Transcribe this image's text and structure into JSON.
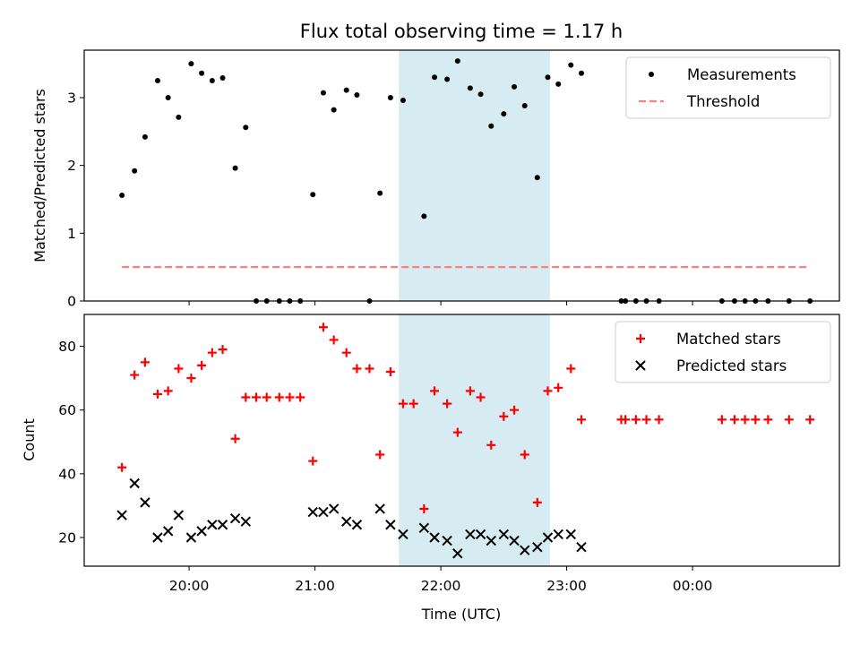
{
  "chart_data": {
    "title": "Flux total observing time = 1.17 h",
    "xlabel": "Time (UTC)",
    "x_ticks": [
      "20:00",
      "21:00",
      "22:00",
      "23:00",
      "00:00"
    ],
    "x_range": [
      "19:10",
      "01:10"
    ],
    "highlight_span": {
      "start": "21:40",
      "end": "22:52",
      "color": "#add8e6"
    },
    "panels": [
      {
        "type": "scatter",
        "ylabel": "Matched/Predicted stars",
        "ylim": [
          0,
          3.7
        ],
        "y_ticks": [
          0,
          1,
          2,
          3
        ],
        "legend_position": "upper right",
        "series": [
          {
            "name": "Measurements",
            "color": "#000000",
            "marker": "dot",
            "points": [
              {
                "x": "19:28",
                "y": 1.56
              },
              {
                "x": "19:34",
                "y": 1.92
              },
              {
                "x": "19:39",
                "y": 2.42
              },
              {
                "x": "19:45",
                "y": 3.25
              },
              {
                "x": "19:50",
                "y": 3.0
              },
              {
                "x": "19:55",
                "y": 2.71
              },
              {
                "x": "20:01",
                "y": 3.5
              },
              {
                "x": "20:06",
                "y": 3.36
              },
              {
                "x": "20:11",
                "y": 3.25
              },
              {
                "x": "20:16",
                "y": 3.29
              },
              {
                "x": "20:22",
                "y": 1.96
              },
              {
                "x": "20:27",
                "y": 2.56
              },
              {
                "x": "20:32",
                "y": 0.0
              },
              {
                "x": "20:37",
                "y": 0.0
              },
              {
                "x": "20:43",
                "y": 0.0
              },
              {
                "x": "20:48",
                "y": 0.0
              },
              {
                "x": "20:53",
                "y": 0.0
              },
              {
                "x": "20:59",
                "y": 1.57
              },
              {
                "x": "21:04",
                "y": 3.07
              },
              {
                "x": "21:09",
                "y": 2.82
              },
              {
                "x": "21:15",
                "y": 3.11
              },
              {
                "x": "21:20",
                "y": 3.04
              },
              {
                "x": "21:26",
                "y": 0.0
              },
              {
                "x": "21:31",
                "y": 1.59
              },
              {
                "x": "21:36",
                "y": 3.0
              },
              {
                "x": "21:42",
                "y": 2.96
              },
              {
                "x": "21:52",
                "y": 1.25
              },
              {
                "x": "21:57",
                "y": 3.3
              },
              {
                "x": "22:03",
                "y": 3.27
              },
              {
                "x": "22:08",
                "y": 3.54
              },
              {
                "x": "22:14",
                "y": 3.14
              },
              {
                "x": "22:19",
                "y": 3.05
              },
              {
                "x": "22:24",
                "y": 2.58
              },
              {
                "x": "22:30",
                "y": 2.76
              },
              {
                "x": "22:35",
                "y": 3.16
              },
              {
                "x": "22:40",
                "y": 2.88
              },
              {
                "x": "22:46",
                "y": 1.82
              },
              {
                "x": "22:51",
                "y": 3.3
              },
              {
                "x": "22:56",
                "y": 3.2
              },
              {
                "x": "23:02",
                "y": 3.48
              },
              {
                "x": "23:07",
                "y": 3.36
              },
              {
                "x": "23:26",
                "y": 0.0
              },
              {
                "x": "23:28",
                "y": 0.0
              },
              {
                "x": "23:33",
                "y": 0.0
              },
              {
                "x": "23:38",
                "y": 0.0
              },
              {
                "x": "23:44",
                "y": 0.0
              },
              {
                "x": "00:14",
                "y": 0.0
              },
              {
                "x": "00:20",
                "y": 0.0
              },
              {
                "x": "00:25",
                "y": 0.0
              },
              {
                "x": "00:30",
                "y": 0.0
              },
              {
                "x": "00:36",
                "y": 0.0
              },
              {
                "x": "00:46",
                "y": 0.0
              },
              {
                "x": "00:56",
                "y": 0.0
              }
            ]
          },
          {
            "name": "Threshold",
            "type": "line",
            "color": "#ff7f7f",
            "dashed": true,
            "x": [
              "19:28",
              "00:56"
            ],
            "y": [
              0.5,
              0.5
            ]
          }
        ]
      },
      {
        "type": "scatter",
        "ylabel": "Count",
        "ylim": [
          11,
          90
        ],
        "y_ticks": [
          20,
          40,
          60,
          80
        ],
        "legend_position": "upper right",
        "series": [
          {
            "name": "Matched stars",
            "color": "#ff0000",
            "marker": "plus",
            "points": [
              {
                "x": "19:28",
                "y": 42
              },
              {
                "x": "19:34",
                "y": 71
              },
              {
                "x": "19:39",
                "y": 75
              },
              {
                "x": "19:45",
                "y": 65
              },
              {
                "x": "19:50",
                "y": 66
              },
              {
                "x": "19:55",
                "y": 73
              },
              {
                "x": "20:01",
                "y": 70
              },
              {
                "x": "20:06",
                "y": 74
              },
              {
                "x": "20:11",
                "y": 78
              },
              {
                "x": "20:16",
                "y": 79
              },
              {
                "x": "20:22",
                "y": 51
              },
              {
                "x": "20:27",
                "y": 64
              },
              {
                "x": "20:32",
                "y": 64
              },
              {
                "x": "20:37",
                "y": 64
              },
              {
                "x": "20:43",
                "y": 64
              },
              {
                "x": "20:48",
                "y": 64
              },
              {
                "x": "20:53",
                "y": 64
              },
              {
                "x": "20:59",
                "y": 44
              },
              {
                "x": "21:04",
                "y": 86
              },
              {
                "x": "21:09",
                "y": 82
              },
              {
                "x": "21:15",
                "y": 78
              },
              {
                "x": "21:20",
                "y": 73
              },
              {
                "x": "21:26",
                "y": 73
              },
              {
                "x": "21:31",
                "y": 46
              },
              {
                "x": "21:36",
                "y": 72
              },
              {
                "x": "21:42",
                "y": 62
              },
              {
                "x": "21:47",
                "y": 62
              },
              {
                "x": "21:52",
                "y": 29
              },
              {
                "x": "21:57",
                "y": 66
              },
              {
                "x": "22:03",
                "y": 62
              },
              {
                "x": "22:08",
                "y": 53
              },
              {
                "x": "22:14",
                "y": 66
              },
              {
                "x": "22:19",
                "y": 64
              },
              {
                "x": "22:24",
                "y": 49
              },
              {
                "x": "22:30",
                "y": 58
              },
              {
                "x": "22:35",
                "y": 60
              },
              {
                "x": "22:40",
                "y": 46
              },
              {
                "x": "22:46",
                "y": 31
              },
              {
                "x": "22:51",
                "y": 66
              },
              {
                "x": "22:56",
                "y": 67
              },
              {
                "x": "23:02",
                "y": 73
              },
              {
                "x": "23:07",
                "y": 57
              },
              {
                "x": "23:26",
                "y": 57
              },
              {
                "x": "23:28",
                "y": 57
              },
              {
                "x": "23:33",
                "y": 57
              },
              {
                "x": "23:38",
                "y": 57
              },
              {
                "x": "23:44",
                "y": 57
              },
              {
                "x": "00:14",
                "y": 57
              },
              {
                "x": "00:20",
                "y": 57
              },
              {
                "x": "00:25",
                "y": 57
              },
              {
                "x": "00:30",
                "y": 57
              },
              {
                "x": "00:36",
                "y": 57
              },
              {
                "x": "00:46",
                "y": 57
              },
              {
                "x": "00:56",
                "y": 57
              }
            ]
          },
          {
            "name": "Predicted stars",
            "color": "#000000",
            "marker": "x",
            "points": [
              {
                "x": "19:28",
                "y": 27
              },
              {
                "x": "19:34",
                "y": 37
              },
              {
                "x": "19:39",
                "y": 31
              },
              {
                "x": "19:45",
                "y": 20
              },
              {
                "x": "19:50",
                "y": 22
              },
              {
                "x": "19:55",
                "y": 27
              },
              {
                "x": "20:01",
                "y": 20
              },
              {
                "x": "20:06",
                "y": 22
              },
              {
                "x": "20:11",
                "y": 24
              },
              {
                "x": "20:16",
                "y": 24
              },
              {
                "x": "20:22",
                "y": 26
              },
              {
                "x": "20:27",
                "y": 25
              },
              {
                "x": "20:59",
                "y": 28
              },
              {
                "x": "21:04",
                "y": 28
              },
              {
                "x": "21:09",
                "y": 29
              },
              {
                "x": "21:15",
                "y": 25
              },
              {
                "x": "21:20",
                "y": 24
              },
              {
                "x": "21:31",
                "y": 29
              },
              {
                "x": "21:36",
                "y": 24
              },
              {
                "x": "21:42",
                "y": 21
              },
              {
                "x": "21:52",
                "y": 23
              },
              {
                "x": "21:57",
                "y": 20
              },
              {
                "x": "22:03",
                "y": 19
              },
              {
                "x": "22:08",
                "y": 15
              },
              {
                "x": "22:14",
                "y": 21
              },
              {
                "x": "22:19",
                "y": 21
              },
              {
                "x": "22:24",
                "y": 19
              },
              {
                "x": "22:30",
                "y": 21
              },
              {
                "x": "22:35",
                "y": 19
              },
              {
                "x": "22:40",
                "y": 16
              },
              {
                "x": "22:46",
                "y": 17
              },
              {
                "x": "22:51",
                "y": 20
              },
              {
                "x": "22:56",
                "y": 21
              },
              {
                "x": "23:02",
                "y": 21
              },
              {
                "x": "23:07",
                "y": 17
              }
            ]
          }
        ]
      }
    ]
  }
}
